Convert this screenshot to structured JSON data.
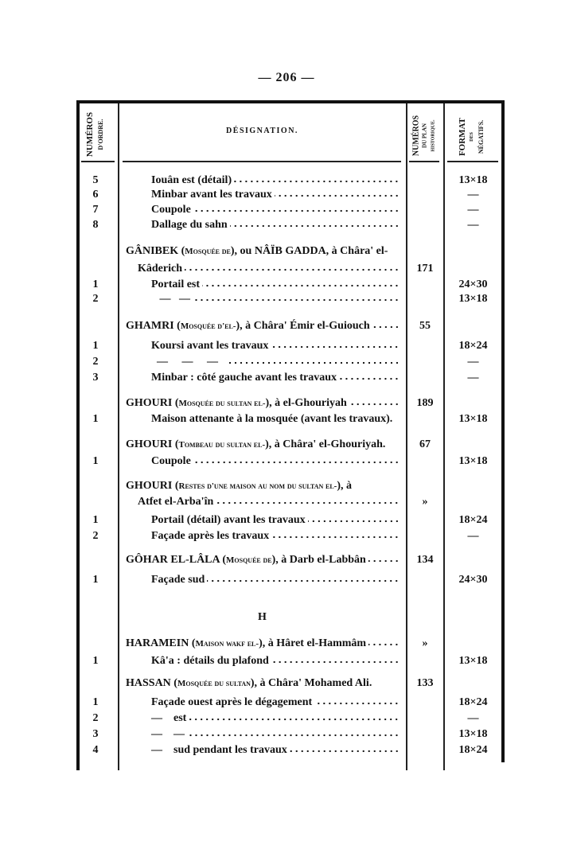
{
  "page_number": "— 206 —",
  "headers": {
    "numeros_ordre": [
      "NUMÉROS",
      "D'ORDRE."
    ],
    "designation": "DÉSIGNATION.",
    "numeros_plan": [
      "NUMÉROS",
      "DU PLAN",
      "HISTORIQUE."
    ],
    "format": [
      "FORMAT",
      "DES",
      "NÉGATIFS."
    ]
  },
  "rows": [
    {
      "kind": "item",
      "num": "5",
      "parts": [
        {
          "t": "Iouân est (détail)"
        }
      ],
      "plan": "",
      "format": "13×18"
    },
    {
      "kind": "item",
      "num": "6",
      "parts": [
        {
          "t": "Minbar avant les travaux"
        }
      ],
      "plan": "",
      "format": "—"
    },
    {
      "kind": "item",
      "num": "7",
      "parts": [
        {
          "t": "Coupole"
        }
      ],
      "plan": "",
      "format": "—"
    },
    {
      "kind": "item",
      "num": "8",
      "parts": [
        {
          "t": "Dallage du sahn"
        }
      ],
      "plan": "",
      "format": "—"
    },
    {
      "kind": "heading",
      "num": "",
      "parts": [
        {
          "t": "GÂNIBEK ("
        },
        {
          "t": "Mosquée de",
          "sc": true
        },
        {
          "t": "), ou NÂÏB GADDA, à Châra' el-"
        }
      ],
      "plan": "",
      "format": ""
    },
    {
      "kind": "cont",
      "num": "",
      "parts": [
        {
          "t": "Kâderich"
        }
      ],
      "plan": "171",
      "format": ""
    },
    {
      "kind": "item",
      "num": "1",
      "parts": [
        {
          "t": "Portail est"
        }
      ],
      "plan": "",
      "format": "24×30"
    },
    {
      "kind": "item",
      "num": "2",
      "parts": [
        {
          "t": "   —   —"
        }
      ],
      "plan": "",
      "format": "13×18"
    },
    {
      "kind": "heading",
      "num": "",
      "parts": [
        {
          "t": "GHAMRI ("
        },
        {
          "t": "Mosquée d'el-",
          "sc": true
        },
        {
          "t": "), à Châra' Émir el-Guiouch"
        }
      ],
      "plan": "55",
      "format": ""
    },
    {
      "kind": "item",
      "num": "1",
      "parts": [
        {
          "t": "Koursi avant les travaux"
        }
      ],
      "plan": "",
      "format": "18×24"
    },
    {
      "kind": "item",
      "num": "2",
      "parts": [
        {
          "t": "  —     —     —   "
        }
      ],
      "plan": "",
      "format": "—"
    },
    {
      "kind": "item",
      "num": "3",
      "parts": [
        {
          "t": "Minbar : côté gauche avant les travaux"
        }
      ],
      "plan": "",
      "format": "—"
    },
    {
      "kind": "heading",
      "num": "",
      "parts": [
        {
          "t": "GHOURI ("
        },
        {
          "t": "Mosquée du sultan el-",
          "sc": true
        },
        {
          "t": "), à el-Ghouriyah"
        }
      ],
      "plan": "189",
      "format": ""
    },
    {
      "kind": "item",
      "num": "1",
      "parts": [
        {
          "t": "Maison attenante à la mosquée (avant les travaux)."
        }
      ],
      "plan": "",
      "format": "13×18",
      "noLead": true
    },
    {
      "kind": "heading",
      "num": "",
      "parts": [
        {
          "t": "GHOURI ("
        },
        {
          "t": "Tombeau du sultan el-",
          "sc": true
        },
        {
          "t": "), à Châra' el-Ghouriyah."
        }
      ],
      "plan": "67",
      "format": "",
      "noLead": true
    },
    {
      "kind": "item",
      "num": "1",
      "parts": [
        {
          "t": "Coupole"
        }
      ],
      "plan": "",
      "format": "13×18"
    },
    {
      "kind": "heading",
      "num": "",
      "parts": [
        {
          "t": "GHOURI ("
        },
        {
          "t": "Restes d'une maison au nom du sultan el-",
          "sc": true
        },
        {
          "t": "), à"
        }
      ],
      "plan": "",
      "format": "",
      "noLead": true
    },
    {
      "kind": "cont",
      "num": "",
      "parts": [
        {
          "t": "Atfet el-Arba'în"
        }
      ],
      "plan": "»",
      "format": ""
    },
    {
      "kind": "item",
      "num": "1",
      "parts": [
        {
          "t": "Portail (détail) avant les travaux"
        }
      ],
      "plan": "",
      "format": "18×24"
    },
    {
      "kind": "item",
      "num": "2",
      "parts": [
        {
          "t": "Façade après les travaux"
        }
      ],
      "plan": "",
      "format": "—"
    },
    {
      "kind": "heading",
      "num": "",
      "parts": [
        {
          "t": "GÔHAR EL-LÂLA ("
        },
        {
          "t": "Mosquée de",
          "sc": true
        },
        {
          "t": "), à Darb el-Labbân"
        }
      ],
      "plan": "134",
      "format": ""
    },
    {
      "kind": "item",
      "num": "1",
      "parts": [
        {
          "t": "Façade sud"
        }
      ],
      "plan": "",
      "format": "24×30"
    },
    {
      "kind": "letter",
      "num": "",
      "parts": [
        {
          "t": "H"
        }
      ],
      "plan": "",
      "format": ""
    },
    {
      "kind": "heading",
      "num": "",
      "parts": [
        {
          "t": "HARAMEIN ("
        },
        {
          "t": "Maison wakf el-",
          "sc": true
        },
        {
          "t": "), à Hâret el-Hammâm"
        }
      ],
      "plan": "»",
      "format": ""
    },
    {
      "kind": "item",
      "num": "1",
      "parts": [
        {
          "t": "Kâ'a : détails du plafond"
        }
      ],
      "plan": "",
      "format": "13×18"
    },
    {
      "kind": "heading",
      "num": "",
      "parts": [
        {
          "t": "HASSAN ("
        },
        {
          "t": "Mosquée du sultan",
          "sc": true
        },
        {
          "t": "), à Châra' Mohamed Ali."
        }
      ],
      "plan": "133",
      "format": "",
      "noLead": true
    },
    {
      "kind": "item",
      "num": "1",
      "parts": [
        {
          "t": "Façade ouest après le dégagement"
        }
      ],
      "plan": "",
      "format": "18×24"
    },
    {
      "kind": "item",
      "num": "2",
      "parts": [
        {
          "t": "—    est"
        }
      ],
      "plan": "",
      "format": "—"
    },
    {
      "kind": "item",
      "num": "3",
      "parts": [
        {
          "t": "—    —"
        }
      ],
      "plan": "",
      "format": "13×18"
    },
    {
      "kind": "item",
      "num": "4",
      "parts": [
        {
          "t": "—    sud pendant les travaux"
        }
      ],
      "plan": "",
      "format": "18×24"
    }
  ]
}
